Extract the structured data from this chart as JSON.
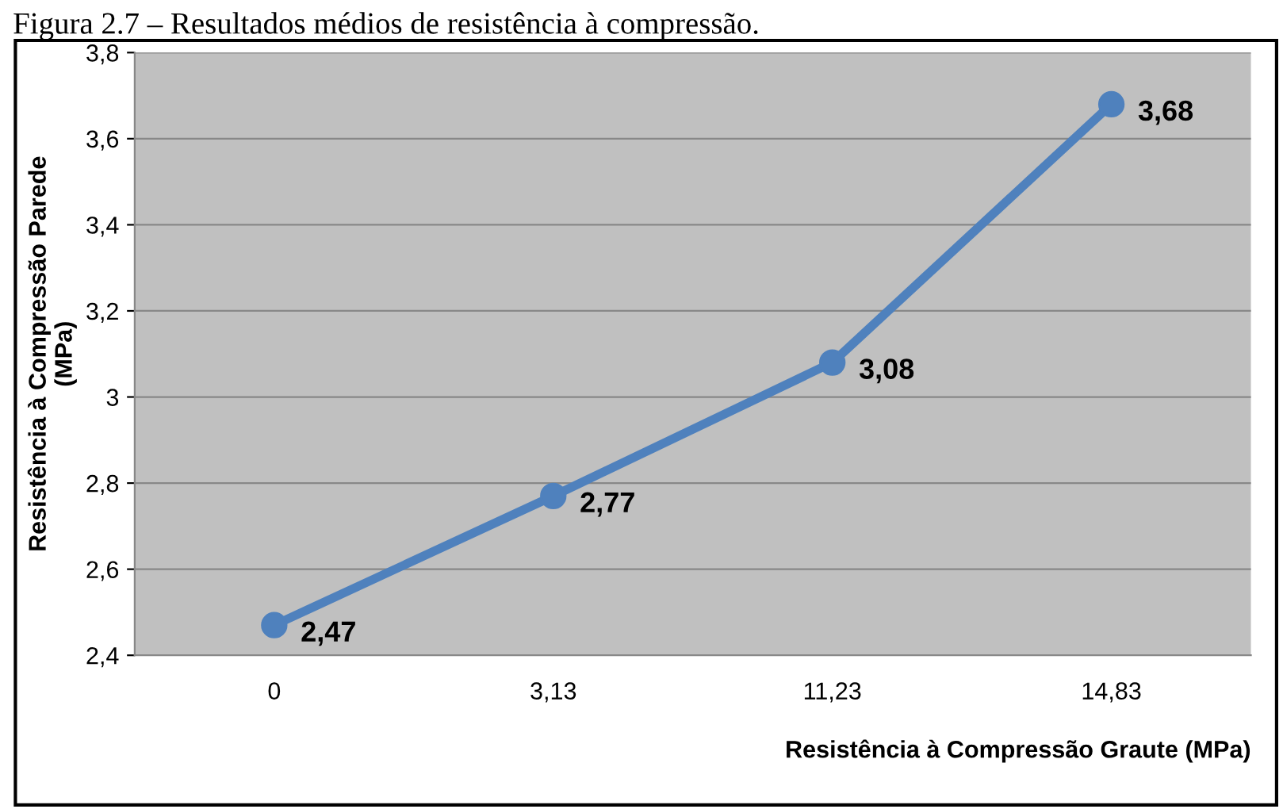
{
  "chart_data": {
    "type": "line",
    "title": "Figura 2.7 – Resultados médios de resistência à compressão.",
    "xlabel": "Resistência à Compressão Graute (MPa)",
    "ylabel": "Resistência à Compressão Parede\n(MPa)",
    "categories": [
      "0",
      "3,13",
      "11,23",
      "14,83"
    ],
    "series": [
      {
        "color": "#4f81bd",
        "values": [
          2.47,
          2.77,
          3.08,
          3.68
        ],
        "value_labels": [
          "2,47",
          "2,77",
          "3,08",
          "3,68"
        ]
      }
    ],
    "ylim": [
      2.4,
      3.8
    ],
    "yticks": [
      {
        "value": 2.4,
        "label": "2,4"
      },
      {
        "value": 2.6,
        "label": "2,6"
      },
      {
        "value": 2.8,
        "label": "2,8"
      },
      {
        "value": 3.0,
        "label": "3"
      },
      {
        "value": 3.2,
        "label": "3,2"
      },
      {
        "value": 3.4,
        "label": "3,4"
      },
      {
        "value": 3.6,
        "label": "3,6"
      },
      {
        "value": 3.8,
        "label": "3,8"
      }
    ],
    "grid": "y",
    "marker": "circle",
    "line_style": "solid",
    "legend": false
  }
}
